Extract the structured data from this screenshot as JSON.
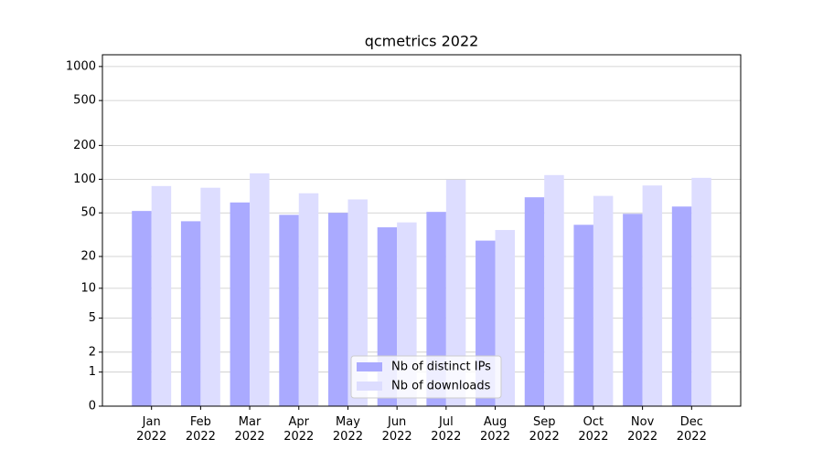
{
  "chart_data": {
    "type": "bar",
    "title": "qcmetrics 2022",
    "categories": [
      "Jan\n2022",
      "Feb\n2022",
      "Mar\n2022",
      "Apr\n2022",
      "May\n2022",
      "Jun\n2022",
      "Jul\n2022",
      "Aug\n2022",
      "Sep\n2022",
      "Oct\n2022",
      "Nov\n2022",
      "Dec\n2022"
    ],
    "series": [
      {
        "name": "Nb of distinct IPs",
        "color": "#aaaaff",
        "values": [
          52,
          42,
          62,
          48,
          50,
          37,
          51,
          28,
          69,
          39,
          49,
          57
        ]
      },
      {
        "name": "Nb of downloads",
        "color": "#ddddff",
        "values": [
          87,
          84,
          113,
          75,
          66,
          41,
          99,
          35,
          109,
          71,
          88,
          103
        ]
      }
    ],
    "yscale": "log1p",
    "ylim": [
      0,
      1270
    ],
    "yticks": [
      0,
      1,
      2,
      5,
      10,
      20,
      50,
      100,
      200,
      500,
      1000
    ],
    "grid": true,
    "legend": "lower center"
  }
}
